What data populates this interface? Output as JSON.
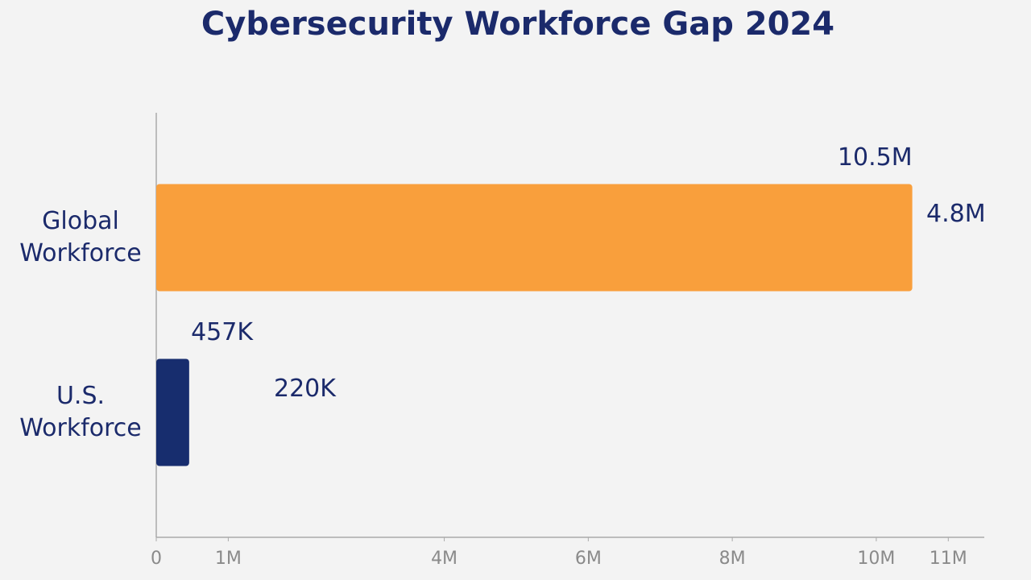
{
  "chart_data": {
    "type": "hbar",
    "title": "Cybersecurity Workforce Gap 2024",
    "categories": [
      "Global\nWorkforce",
      "U.S.\nWorkforce"
    ],
    "values": [
      10500000,
      457000
    ],
    "value_labels": [
      "10.5M",
      "457K"
    ],
    "secondary_values": [
      4800000,
      220000
    ],
    "secondary_value_labels": [
      "4.8M",
      "220K"
    ],
    "colors": [
      "#f99f3c",
      "#172d6e"
    ],
    "xlim": [
      0,
      11500000
    ],
    "xticks": [
      0,
      {
        "value": 1000000,
        "label": "1M"
      },
      {
        "value": 4000000,
        "label": "4M"
      },
      {
        "value": 6000000,
        "label": "6M"
      },
      {
        "value": 8000000,
        "label": "8M"
      },
      {
        "value": 10000000,
        "label": "10M"
      },
      {
        "value": 11000000,
        "label": "11M"
      }
    ],
    "grid": false
  }
}
